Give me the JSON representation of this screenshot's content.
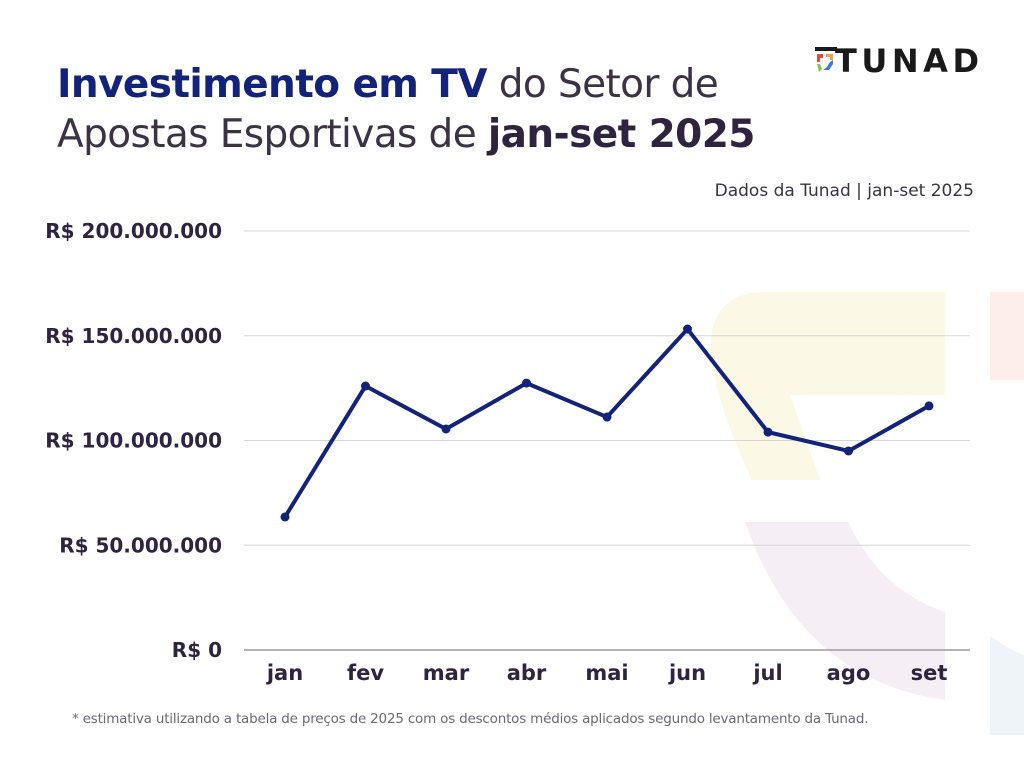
{
  "header": {
    "title_highlight": "Investimento em TV",
    "title_rest_1": " do Setor de",
    "title_rest_2": "Apostas Esportivas de ",
    "title_bold_end": "jan-set 2025",
    "subtitle": "Dados da Tunad | jan-set 2025",
    "logo_text": "TUNAD"
  },
  "footnote": "* estimativa utilizando a tabela de preços de 2025 com os descontos médios aplicados segundo levantamento da Tunad.",
  "colors": {
    "line": "#13237a",
    "grid": "#d6d6d8",
    "axis": "#9a9aa0",
    "title_highlight": "#13237a",
    "text": "#2e2440"
  },
  "chart_data": {
    "type": "line",
    "title": "Investimento em TV do Setor de Apostas Esportivas de jan-set 2025",
    "xlabel": "",
    "ylabel": "",
    "categories": [
      "jan",
      "fev",
      "mar",
      "abr",
      "mai",
      "jun",
      "jul",
      "ago",
      "set"
    ],
    "series": [
      {
        "name": "Investimento em TV",
        "values": [
          63500000,
          126000000,
          105500000,
          127400000,
          111200000,
          153200000,
          104000000,
          95000000,
          116500000
        ]
      }
    ],
    "ylim": [
      0,
      200000000
    ],
    "yticks": [
      0,
      50000000,
      100000000,
      150000000,
      200000000
    ],
    "ytick_labels": [
      "R$ 0",
      "R$ 50.000.000",
      "R$ 100.000.000",
      "R$ 150.000.000",
      "R$ 200.000.000"
    ],
    "grid": true,
    "legend": "none"
  }
}
